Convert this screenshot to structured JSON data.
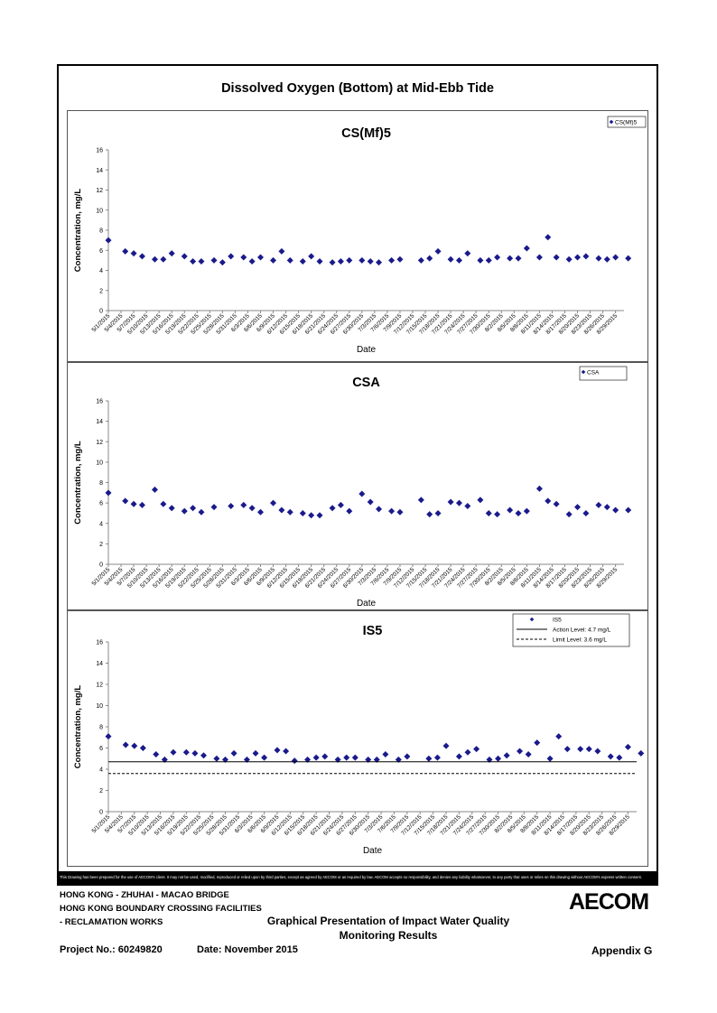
{
  "page": {
    "title": "Dissolved Oxygen (Bottom) at Mid-Ebb Tide",
    "disclaimer": "This Drawing has been prepared for the use of AECOM's client. It may not be used, modified, reproduced or relied upon by third parties, except as agreed by AECOM or as required by law. AECOM accepts no responsibility, and denies any liability whatsoever, to any party that uses or relies on this drawing without AECOM's express written consent.",
    "footer": {
      "line1": "HONG KONG - ZHUHAI - MACAO BRIDGE",
      "line2": "HONG KONG BOUNDARY CROSSING FACILITIES",
      "line3": "- RECLAMATION WORKS",
      "center_line1": "Graphical Presentation of Impact Water Quality",
      "center_line2": "Monitoring Results",
      "project": "Project No.: 60249820",
      "date": "Date: November 2015",
      "appendix": "Appendix G",
      "logo": "AECOM"
    }
  },
  "chart_data": [
    {
      "type": "scatter",
      "title": "CS(Mf)5",
      "xlabel": "Date",
      "ylabel": "Concentration, mg/L",
      "ylim": [
        0,
        16
      ],
      "yticks": [
        0,
        2,
        4,
        6,
        8,
        10,
        12,
        14,
        16
      ],
      "xlim": [
        "5/1/2015",
        "8/31/2015"
      ],
      "xticks": [
        "5/1/2015",
        "5/4/2015",
        "5/7/2015",
        "5/10/2015",
        "5/13/2015",
        "5/16/2015",
        "5/19/2015",
        "5/22/2015",
        "5/25/2015",
        "5/28/2015",
        "5/31/2015",
        "6/3/2015",
        "6/6/2015",
        "6/9/2015",
        "6/12/2015",
        "6/15/2015",
        "6/18/2015",
        "6/21/2015",
        "6/24/2015",
        "6/27/2015",
        "6/30/2015",
        "7/3/2015",
        "7/6/2015",
        "7/9/2015",
        "7/12/2015",
        "7/15/2015",
        "7/18/2015",
        "7/21/2015",
        "7/24/2015",
        "7/27/2015",
        "7/30/2015",
        "8/2/2015",
        "8/5/2015",
        "8/8/2015",
        "8/11/2015",
        "8/14/2015",
        "8/17/2015",
        "8/20/2015",
        "8/23/2015",
        "8/26/2015",
        "8/29/2015"
      ],
      "grid": false,
      "legend": "top-right",
      "series": [
        {
          "name": "CS(Mf)5",
          "color": "#1a1a8c",
          "marker": "diamond",
          "x": [
            "5/1/2015",
            "5/5/2015",
            "5/7/2015",
            "5/9/2015",
            "5/12/2015",
            "5/14/2015",
            "5/16/2015",
            "5/19/2015",
            "5/21/2015",
            "5/23/2015",
            "5/26/2015",
            "5/28/2015",
            "5/30/2015",
            "6/2/2015",
            "6/4/2015",
            "6/6/2015",
            "6/9/2015",
            "6/11/2015",
            "6/13/2015",
            "6/16/2015",
            "6/18/2015",
            "6/20/2015",
            "6/23/2015",
            "6/25/2015",
            "6/27/2015",
            "6/30/2015",
            "7/2/2015",
            "7/4/2015",
            "7/7/2015",
            "7/9/2015",
            "7/14/2015",
            "7/16/2015",
            "7/18/2015",
            "7/21/2015",
            "7/23/2015",
            "7/25/2015",
            "7/28/2015",
            "7/30/2015",
            "8/1/2015",
            "8/4/2015",
            "8/6/2015",
            "8/8/2015",
            "8/11/2015",
            "8/13/2015",
            "8/15/2015",
            "8/18/2015",
            "8/20/2015",
            "8/22/2015",
            "8/25/2015",
            "8/27/2015",
            "8/29/2015",
            "9/1/2015"
          ],
          "y": [
            7.0,
            5.9,
            5.7,
            5.4,
            5.1,
            5.1,
            5.7,
            5.4,
            4.9,
            4.9,
            5.0,
            4.8,
            5.4,
            5.3,
            4.9,
            5.3,
            5.0,
            5.9,
            5.0,
            4.9,
            5.4,
            4.9,
            4.8,
            4.9,
            5.0,
            5.0,
            4.9,
            4.8,
            5.0,
            5.1,
            5.0,
            5.2,
            5.9,
            5.1,
            5.0,
            5.7,
            5.0,
            5.0,
            5.3,
            5.2,
            5.2,
            6.2,
            5.3,
            7.3,
            5.3,
            5.1,
            5.3,
            5.4,
            5.2,
            5.1,
            5.3,
            5.2
          ]
        }
      ]
    },
    {
      "type": "scatter",
      "title": "CSA",
      "xlabel": "Date",
      "ylabel": "Concentration, mg/L",
      "ylim": [
        0,
        16
      ],
      "yticks": [
        0,
        2,
        4,
        6,
        8,
        10,
        12,
        14,
        16
      ],
      "xlim": [
        "5/1/2015",
        "8/31/2015"
      ],
      "xticks": [
        "5/1/2015",
        "5/4/2015",
        "5/7/2015",
        "5/10/2015",
        "5/13/2015",
        "5/16/2015",
        "5/19/2015",
        "5/22/2015",
        "5/25/2015",
        "5/28/2015",
        "5/31/2015",
        "6/3/2015",
        "6/6/2015",
        "6/9/2015",
        "6/12/2015",
        "6/15/2015",
        "6/18/2015",
        "6/21/2015",
        "6/24/2015",
        "6/27/2015",
        "6/30/2015",
        "7/3/2015",
        "7/6/2015",
        "7/9/2015",
        "7/12/2015",
        "7/15/2015",
        "7/18/2015",
        "7/21/2015",
        "7/24/2015",
        "7/27/2015",
        "7/30/2015",
        "8/2/2015",
        "8/5/2015",
        "8/8/2015",
        "8/11/2015",
        "8/14/2015",
        "8/17/2015",
        "8/20/2015",
        "8/23/2015",
        "8/26/2015",
        "8/29/2015"
      ],
      "grid": false,
      "legend": "top-right",
      "series": [
        {
          "name": "CSA",
          "color": "#1a1a8c",
          "marker": "diamond",
          "x": [
            "5/1/2015",
            "5/5/2015",
            "5/7/2015",
            "5/9/2015",
            "5/12/2015",
            "5/14/2015",
            "5/16/2015",
            "5/19/2015",
            "5/21/2015",
            "5/23/2015",
            "5/26/2015",
            "5/30/2015",
            "6/2/2015",
            "6/4/2015",
            "6/6/2015",
            "6/9/2015",
            "6/11/2015",
            "6/13/2015",
            "6/16/2015",
            "6/18/2015",
            "6/20/2015",
            "6/23/2015",
            "6/25/2015",
            "6/27/2015",
            "6/30/2015",
            "7/2/2015",
            "7/4/2015",
            "7/7/2015",
            "7/9/2015",
            "7/14/2015",
            "7/16/2015",
            "7/18/2015",
            "7/21/2015",
            "7/23/2015",
            "7/25/2015",
            "7/28/2015",
            "7/30/2015",
            "8/1/2015",
            "8/4/2015",
            "8/6/2015",
            "8/8/2015",
            "8/11/2015",
            "8/13/2015",
            "8/15/2015",
            "8/18/2015",
            "8/20/2015",
            "8/22/2015",
            "8/25/2015",
            "8/27/2015",
            "8/29/2015",
            "9/1/2015"
          ],
          "y": [
            7.0,
            6.2,
            5.9,
            5.8,
            7.3,
            5.9,
            5.5,
            5.2,
            5.5,
            5.1,
            5.6,
            5.7,
            5.8,
            5.5,
            5.1,
            6.0,
            5.3,
            5.1,
            5.0,
            4.8,
            4.8,
            5.5,
            5.8,
            5.2,
            6.9,
            6.1,
            5.4,
            5.2,
            5.1,
            6.3,
            4.9,
            5.0,
            6.1,
            6.0,
            5.7,
            6.3,
            5.0,
            4.9,
            5.3,
            5.0,
            5.2,
            7.4,
            6.2,
            5.9,
            4.9,
            5.6,
            5.0,
            5.8,
            5.6,
            5.3,
            5.3
          ]
        }
      ]
    },
    {
      "type": "scatter",
      "title": "IS5",
      "xlabel": "Date",
      "ylabel": "Concentration, mg/L",
      "ylim": [
        0,
        16
      ],
      "yticks": [
        0,
        2,
        4,
        6,
        8,
        10,
        12,
        14,
        16
      ],
      "xlim": [
        "5/1/2015",
        "8/31/2015"
      ],
      "xticks": [
        "5/1/2015",
        "5/4/2015",
        "5/7/2015",
        "5/10/2015",
        "5/13/2015",
        "5/16/2015",
        "5/19/2015",
        "5/22/2015",
        "5/25/2015",
        "5/28/2015",
        "5/31/2015",
        "6/3/2015",
        "6/6/2015",
        "6/9/2015",
        "6/12/2015",
        "6/15/2015",
        "6/18/2015",
        "6/21/2015",
        "6/24/2015",
        "6/27/2015",
        "6/30/2015",
        "7/3/2015",
        "7/6/2015",
        "7/9/2015",
        "7/12/2015",
        "7/15/2015",
        "7/18/2015",
        "7/21/2015",
        "7/24/2015",
        "7/27/2015",
        "7/30/2015",
        "8/2/2015",
        "8/5/2015",
        "8/8/2015",
        "8/11/2015",
        "8/14/2015",
        "8/17/2015",
        "8/20/2015",
        "8/23/2015",
        "8/26/2015",
        "8/29/2015"
      ],
      "grid": false,
      "legend": "top-right",
      "series": [
        {
          "name": "IS5",
          "color": "#1a1a8c",
          "marker": "diamond",
          "x": [
            "5/1/2015",
            "5/5/2015",
            "5/7/2015",
            "5/9/2015",
            "5/12/2015",
            "5/14/2015",
            "5/16/2015",
            "5/19/2015",
            "5/21/2015",
            "5/23/2015",
            "5/26/2015",
            "5/28/2015",
            "5/30/2015",
            "6/2/2015",
            "6/4/2015",
            "6/6/2015",
            "6/9/2015",
            "6/11/2015",
            "6/13/2015",
            "6/16/2015",
            "6/18/2015",
            "6/20/2015",
            "6/23/2015",
            "6/25/2015",
            "6/27/2015",
            "6/30/2015",
            "7/2/2015",
            "7/4/2015",
            "7/7/2015",
            "7/9/2015",
            "7/14/2015",
            "7/16/2015",
            "7/18/2015",
            "7/21/2015",
            "7/23/2015",
            "7/25/2015",
            "7/28/2015",
            "7/30/2015",
            "8/1/2015",
            "8/4/2015",
            "8/6/2015",
            "8/8/2015",
            "8/11/2015",
            "8/13/2015",
            "8/15/2015",
            "8/18/2015",
            "8/20/2015",
            "8/22/2015",
            "8/25/2015",
            "8/27/2015",
            "8/29/2015",
            "9/1/2015"
          ],
          "y": [
            7.1,
            6.3,
            6.2,
            6.0,
            5.4,
            4.9,
            5.6,
            5.6,
            5.5,
            5.3,
            5.0,
            4.9,
            5.5,
            4.9,
            5.5,
            5.1,
            5.8,
            5.7,
            4.8,
            4.9,
            5.1,
            5.2,
            4.9,
            5.1,
            5.1,
            4.9,
            4.9,
            5.4,
            4.9,
            5.2,
            5.0,
            5.1,
            6.2,
            5.2,
            5.6,
            5.9,
            4.9,
            5.0,
            5.3,
            5.7,
            5.4,
            6.5,
            5.0,
            7.1,
            5.9,
            5.9,
            5.9,
            5.7,
            5.2,
            5.1,
            6.1,
            5.5
          ]
        },
        {
          "name": "Action Level: 4.7 mg/L",
          "type": "hline",
          "y": 4.7,
          "style": "solid",
          "color": "#000000"
        },
        {
          "name": "Limit Level: 3.6 mg/L",
          "type": "hline",
          "y": 3.6,
          "style": "dashed",
          "color": "#000000"
        }
      ]
    }
  ]
}
